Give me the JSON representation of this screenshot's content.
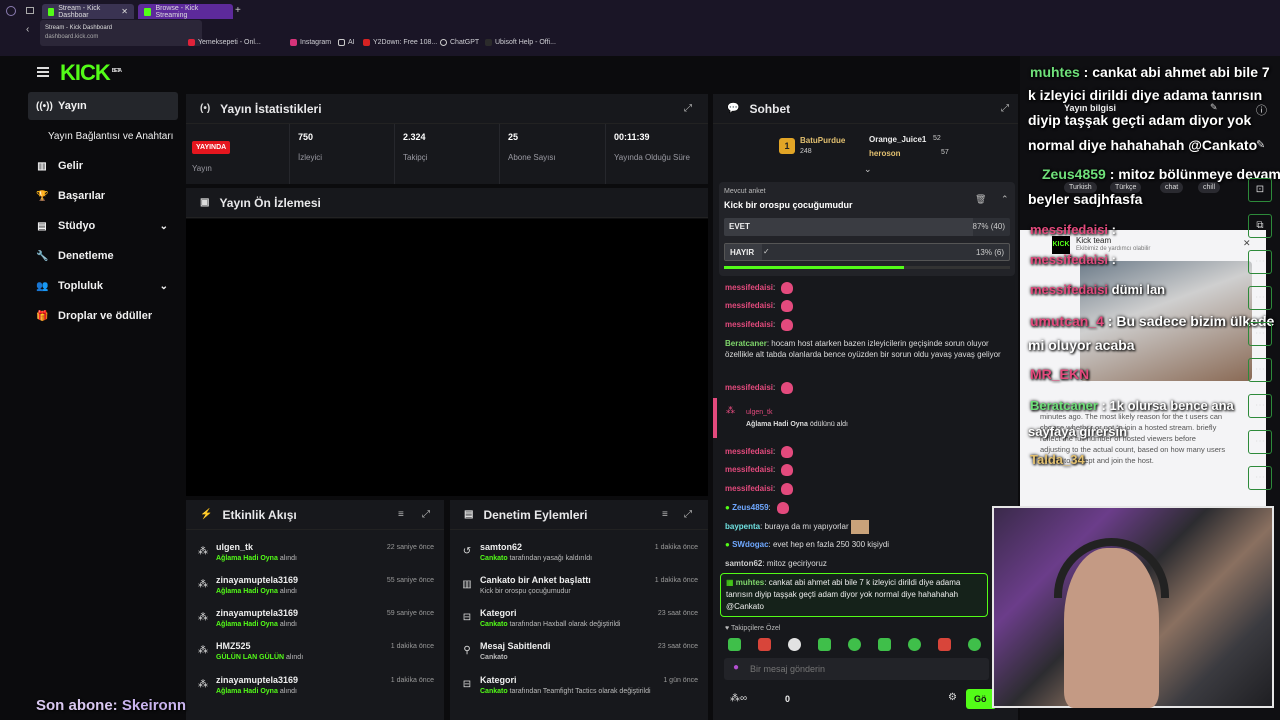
{
  "browser": {
    "tabs": [
      {
        "label": "Stream - Kick Dashboar"
      },
      {
        "label": "Browse - Kick Streaming"
      }
    ],
    "tooltip": {
      "title": "Stream - Kick Dashboard",
      "url": "dashboard.kick.com"
    },
    "bookmarks": [
      "Yemeksepeti - Onl...",
      "Instagram",
      "AI",
      "Y2Down: Free 108...",
      "ChatGPT",
      "Ubisoft Help - Offi..."
    ]
  },
  "brand": {
    "logo": "KICK",
    "beta": "BETA"
  },
  "sidebar": {
    "items": [
      {
        "label": "Yayın",
        "icon": "broadcast-icon"
      },
      {
        "label": "Yayın Bağlantısı ve Anahtarı"
      },
      {
        "label": "Gelir",
        "icon": "chart-icon"
      },
      {
        "label": "Başarılar",
        "icon": "trophy-icon"
      },
      {
        "label": "Stüdyo",
        "icon": "studio-icon"
      },
      {
        "label": "Denetleme",
        "icon": "wrench-icon"
      },
      {
        "label": "Topluluk",
        "icon": "community-icon"
      },
      {
        "label": "Droplar ve ödüller",
        "icon": "gift-icon"
      }
    ]
  },
  "stats": {
    "title": "Yayın İstatistikleri",
    "live_badge": "YAYINDA",
    "items": [
      {
        "value": "",
        "label": "Yayın"
      },
      {
        "value": "750",
        "label": "İzleyici"
      },
      {
        "value": "2.324",
        "label": "Takipçi"
      },
      {
        "value": "25",
        "label": "Abone Sayısı"
      },
      {
        "value": "00:11:39",
        "label": "Yayında Olduğu Süre"
      }
    ]
  },
  "preview": {
    "title": "Yayın Ön İzlemesi"
  },
  "activity": {
    "title": "Etkinlik Akışı",
    "items": [
      {
        "name": "ulgen_tk",
        "action": "Ağlama Hadi Oyna",
        "suffix": "alındı",
        "time": "22 saniye önce"
      },
      {
        "name": "zinayamuptela3169",
        "action": "Ağlama Hadi Oyna",
        "suffix": "alındı",
        "time": "55 saniye önce"
      },
      {
        "name": "zinayamuptela3169",
        "action": "Ağlama Hadi Oyna",
        "suffix": "alındı",
        "time": "59 saniye önce"
      },
      {
        "name": "HMZ525",
        "action": "GÜLÜN LAN GÜLÜN",
        "suffix": "alındı",
        "time": "1 dakika önce"
      },
      {
        "name": "zinayamuptela3169",
        "action": "Ağlama Hadi Oyna",
        "suffix": "alındı",
        "time": "1 dakika önce"
      }
    ]
  },
  "moderation": {
    "title": "Denetim Eylemleri",
    "items": [
      {
        "title": "samton62",
        "desc_pre": "Cankato",
        "desc": "tarafından yasağı kaldırıldı",
        "time": "1 dakika önce"
      },
      {
        "title": "Cankato bir Anket başlattı",
        "desc_pre": "",
        "desc": "Kick bir orospu çocuğumudur",
        "time": "1 dakika önce"
      },
      {
        "title": "Kategori",
        "desc_pre": "Cankato",
        "desc": "tarafından Haxball olarak değiştirildi",
        "time": "23 saat önce"
      },
      {
        "title": "Mesaj Sabitlendi",
        "desc_pre": "",
        "desc": "Cankato",
        "time": "23 saat önce"
      },
      {
        "title": "Kategori",
        "desc_pre": "Cankato",
        "desc": "tarafından Teamfight Tactics olarak değiştirildi",
        "time": "1 gün önce"
      }
    ]
  },
  "chat": {
    "title": "Sohbet",
    "leaders": [
      {
        "rank": "1",
        "name": "BatuPurdue",
        "value": "248"
      },
      {
        "name": "Orange_Juice1",
        "value": "52"
      },
      {
        "name": "heroson",
        "value": "57"
      }
    ],
    "poll": {
      "label": "Mevcut anket",
      "question": "Kick bir orospu çocuğumudur",
      "options": [
        {
          "label": "EVET",
          "result": "87% (40)",
          "share": 0.87
        },
        {
          "label": "HAYIR",
          "result": "13% (6)",
          "share": 0.13
        }
      ]
    },
    "messages": [
      {
        "user": "messifedaisi",
        "text": ""
      },
      {
        "user": "messifedaisi",
        "text": ""
      },
      {
        "user": "messifedaisi",
        "text": ""
      },
      {
        "user": "Beratcaner",
        "text": "hocam host atarken bazen izleyicilerin geçişinde sorun oluyor özellikle alt tabda olanlarda bence oyüzden bir sorun oldu yavaş yavaş geliyor"
      },
      {
        "user": "messifedaisi",
        "text": ""
      },
      {
        "user": "messifedaisi",
        "text": ""
      },
      {
        "user": "messifedaisi",
        "text": ""
      },
      {
        "user": "messifedaisi",
        "text": ""
      },
      {
        "user": "Zeus4859",
        "text": ""
      },
      {
        "user": "baypenta",
        "text": "buraya da mı yapıyorlar"
      },
      {
        "user": "SWdogac",
        "text": "evet hep en fazla 250 300 kişiydi"
      },
      {
        "user": "samton62",
        "text": "mitoz geciriyoruz"
      }
    ],
    "redeem": {
      "user": "ulgen_tk",
      "reward": "Ağlama Hadi Oyna",
      "suffix": "ödülünü aldı"
    },
    "pinned": {
      "user": "muhtes",
      "text": "cankat abi ahmet abi bile 7 k izleyici dirildi diye adama tanrısın diyip taşşak geçti adam diyor yok normal diye hahahahah @Cankato"
    },
    "followers_label": "Takipçilere Özel",
    "input_placeholder": "Bir mesaj gönderin",
    "viewer_count": "0",
    "send_label": "Gö"
  },
  "overlay": {
    "sub_label": "Son abone:",
    "sub_name": "Skeironn",
    "lines": [
      {
        "u": "muhtes",
        "t": "cankat abi ahmet abi bile 7"
      },
      {
        "u": "",
        "t": "k izleyici dirildi diye adama tanrısın"
      },
      {
        "u": "",
        "t": "diyip taşşak geçti adam diyor yok"
      },
      {
        "u": "",
        "t": "normal diye hahahahah @Cankato"
      },
      {
        "u": "Zeus4859",
        "t": "mitoz bölünmeye devam"
      },
      {
        "u": "",
        "t": "beyler sadjhfasfa"
      },
      {
        "u": "messifedaisi",
        "t": ""
      },
      {
        "u": "messifedaisi",
        "t": ""
      },
      {
        "u": "messifedaisi",
        "t": "dümi lan"
      },
      {
        "u": "umutcan_4",
        "t": "Bu sadece bizim ülkede"
      },
      {
        "u": "",
        "t": "mi oluyor acaba"
      },
      {
        "u": "MR_EKN",
        "t": ""
      },
      {
        "u": "Beratcaner",
        "t": "1k olursa bence ana"
      },
      {
        "u": "",
        "t": "sayfaya girersin"
      },
      {
        "u": "Talda_34",
        "t": ""
      }
    ],
    "info_title": "Yayın bilgisi",
    "tags": [
      "Turkish",
      "Türkçe",
      "chat",
      "chill"
    ],
    "kick_team": {
      "name": "Kick team",
      "subtitle": "Ekibimiz de yardımcı olabilir"
    },
    "support_text": "minutes ago. The most likely reason for the t users can choose whether or not to join a hosted stream. briefly reflect the full number of hosted viewers before adjusting to the actual count, based on how many users decide to accept and join the host."
  }
}
